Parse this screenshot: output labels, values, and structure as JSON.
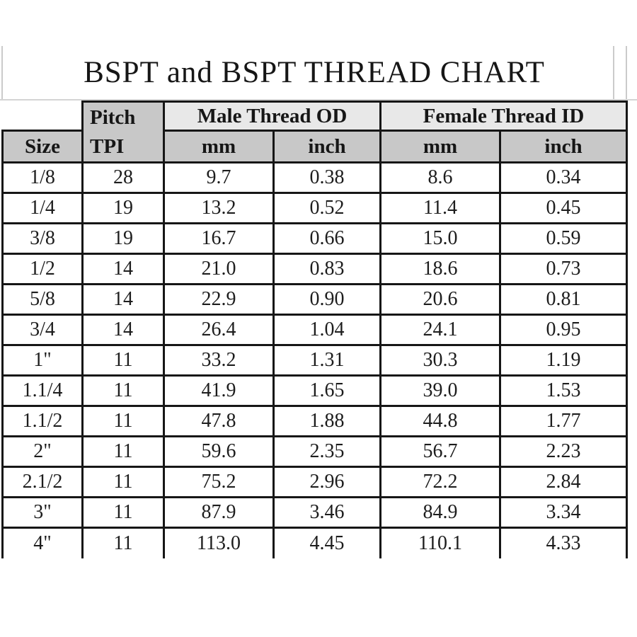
{
  "page": {
    "title": "BSPT and BSPT THREAD CHART"
  },
  "colors": {
    "header_dark_fill": "#c8c8c8",
    "header_light_fill": "#e8e8e8",
    "grid_border": "#161616",
    "thin_rule_gray": "#cbcbcb",
    "background": "#ffffff"
  },
  "table": {
    "header": {
      "size_label": "Size",
      "pitch_label": "Pitch",
      "tpi_label": "TPI",
      "male_group_label": "Male Thread OD",
      "female_group_label": "Female Thread ID",
      "male_mm_label": "mm",
      "male_inch_label": "inch",
      "female_mm_label": "mm",
      "female_inch_label": "inch"
    },
    "columns": [
      "size",
      "tpi",
      "male_mm",
      "male_inch",
      "female_mm",
      "female_inch"
    ],
    "rows": [
      {
        "size": "1/8",
        "tpi": "28",
        "male_mm": "9.7",
        "male_inch": "0.38",
        "female_mm": "8.6",
        "female_inch": "0.34"
      },
      {
        "size": "1/4",
        "tpi": "19",
        "male_mm": "13.2",
        "male_inch": "0.52",
        "female_mm": "11.4",
        "female_inch": "0.45"
      },
      {
        "size": "3/8",
        "tpi": "19",
        "male_mm": "16.7",
        "male_inch": "0.66",
        "female_mm": "15.0",
        "female_inch": "0.59"
      },
      {
        "size": "1/2",
        "tpi": "14",
        "male_mm": "21.0",
        "male_inch": "0.83",
        "female_mm": "18.6",
        "female_inch": "0.73"
      },
      {
        "size": "5/8",
        "tpi": "14",
        "male_mm": "22.9",
        "male_inch": "0.90",
        "female_mm": "20.6",
        "female_inch": "0.81"
      },
      {
        "size": "3/4",
        "tpi": "14",
        "male_mm": "26.4",
        "male_inch": "1.04",
        "female_mm": "24.1",
        "female_inch": "0.95"
      },
      {
        "size": "1\"",
        "tpi": "11",
        "male_mm": "33.2",
        "male_inch": "1.31",
        "female_mm": "30.3",
        "female_inch": "1.19"
      },
      {
        "size": "1.1/4",
        "tpi": "11",
        "male_mm": "41.9",
        "male_inch": "1.65",
        "female_mm": "39.0",
        "female_inch": "1.53"
      },
      {
        "size": "1.1/2",
        "tpi": "11",
        "male_mm": "47.8",
        "male_inch": "1.88",
        "female_mm": "44.8",
        "female_inch": "1.77"
      },
      {
        "size": "2\"",
        "tpi": "11",
        "male_mm": "59.6",
        "male_inch": "2.35",
        "female_mm": "56.7",
        "female_inch": "2.23"
      },
      {
        "size": "2.1/2",
        "tpi": "11",
        "male_mm": "75.2",
        "male_inch": "2.96",
        "female_mm": "72.2",
        "female_inch": "2.84"
      },
      {
        "size": "3\"",
        "tpi": "11",
        "male_mm": "87.9",
        "male_inch": "3.46",
        "female_mm": "84.9",
        "female_inch": "3.34"
      },
      {
        "size": "4\"",
        "tpi": "11",
        "male_mm": "113.0",
        "male_inch": "4.45",
        "female_mm": "110.1",
        "female_inch": "4.33"
      }
    ]
  }
}
